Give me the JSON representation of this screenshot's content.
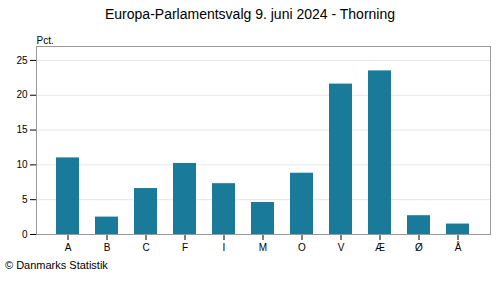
{
  "chart_data": {
    "type": "bar",
    "title": "Europa-Parlamentsvalg 9. juni 2024 - Thorning",
    "categories": [
      "A",
      "B",
      "C",
      "F",
      "I",
      "M",
      "O",
      "V",
      "Æ",
      "Ø",
      "Å"
    ],
    "values": [
      11.0,
      2.5,
      6.6,
      10.2,
      7.3,
      4.6,
      8.8,
      21.6,
      23.5,
      2.7,
      1.5
    ],
    "color": "#1a7a9a",
    "ylabel": "Pct.",
    "ylim": [
      0,
      27
    ],
    "yticks": [
      0,
      5,
      10,
      15,
      20,
      25
    ],
    "grid": true,
    "annotations": [
      "© Danmarks Statistik"
    ]
  }
}
